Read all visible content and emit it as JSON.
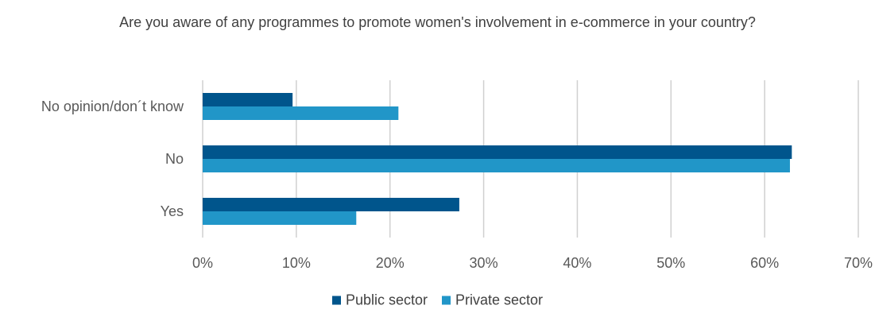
{
  "chart_data": {
    "type": "bar",
    "orientation": "horizontal",
    "title": "Are you aware of any programmes to promote women's involvement in e-commerce in your country?",
    "categories": [
      "No opinion/don´t know",
      "No",
      "Yes"
    ],
    "series": [
      {
        "name": "Public sector",
        "color": "#00558c",
        "values": [
          9.6,
          62.9,
          27.4
        ]
      },
      {
        "name": "Private sector",
        "color": "#2196c8",
        "values": [
          20.9,
          62.7,
          16.4
        ]
      }
    ],
    "xlim": [
      0,
      70
    ],
    "x_ticks": [
      "0%",
      "10%",
      "20%",
      "30%",
      "40%",
      "50%",
      "60%",
      "70%"
    ],
    "x_tick_values": [
      0,
      10,
      20,
      30,
      40,
      50,
      60,
      70
    ],
    "grid": "vertical",
    "legend_position": "bottom"
  }
}
